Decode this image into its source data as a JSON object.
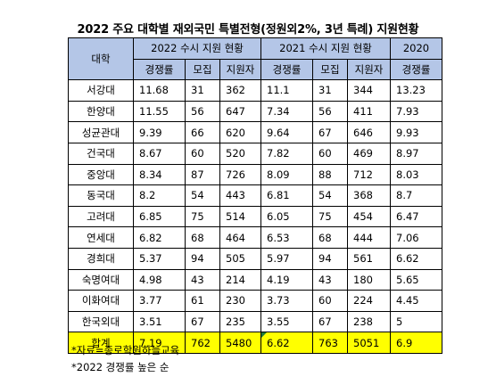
{
  "title": "2022 주요 대학별 재외국민 특별전형(정원외2%, 3년 특례) 지원현황",
  "header": {
    "school_col": "대학",
    "groups": [
      "2022 수시 지원 현황",
      "2021 수시 지원 현황",
      "2020"
    ],
    "subcols": [
      "경쟁률",
      "모집",
      "지원자",
      "경쟁률",
      "모집",
      "지원자",
      "경쟁률"
    ]
  },
  "rows": [
    {
      "school": "서강대",
      "cells": [
        "11.68",
        "31",
        "362",
        "11.1",
        "31",
        "344",
        "13.23"
      ]
    },
    {
      "school": "한양대",
      "cells": [
        "11.55",
        "56",
        "647",
        "7.34",
        "56",
        "411",
        "7.93"
      ]
    },
    {
      "school": "성균관대",
      "cells": [
        "9.39",
        "66",
        "620",
        "9.64",
        "67",
        "646",
        "9.93"
      ]
    },
    {
      "school": "건국대",
      "cells": [
        "8.67",
        "60",
        "520",
        "7.82",
        "60",
        "469",
        "8.97"
      ]
    },
    {
      "school": "중앙대",
      "cells": [
        "8.34",
        "87",
        "726",
        "8.09",
        "88",
        "712",
        "8.03"
      ]
    },
    {
      "school": "동국대",
      "cells": [
        "8.2",
        "54",
        "443",
        "6.81",
        "54",
        "368",
        "8.7"
      ]
    },
    {
      "school": "고려대",
      "cells": [
        "6.85",
        "75",
        "514",
        "6.05",
        "75",
        "454",
        "6.47"
      ]
    },
    {
      "school": "연세대",
      "cells": [
        "6.82",
        "68",
        "464",
        "6.53",
        "68",
        "444",
        "7.06"
      ]
    },
    {
      "school": "경희대",
      "cells": [
        "5.37",
        "94",
        "505",
        "5.97",
        "94",
        "561",
        "6.62"
      ]
    },
    {
      "school": "숙명여대",
      "cells": [
        "4.98",
        "43",
        "214",
        "4.19",
        "43",
        "180",
        "5.65"
      ]
    },
    {
      "school": "이화여대",
      "cells": [
        "3.77",
        "61",
        "230",
        "3.73",
        "60",
        "224",
        "4.45"
      ]
    },
    {
      "school": "한국외대",
      "cells": [
        "3.51",
        "67",
        "235",
        "3.55",
        "67",
        "238",
        "5"
      ]
    }
  ],
  "total": {
    "school": "합계",
    "cells": [
      "7.19",
      "762",
      "5480",
      "6.62",
      "763",
      "5051",
      "6.9"
    ]
  },
  "notes": [
    "*자료=종로학원하늘교육",
    "*2022 경쟁률 높은 순"
  ],
  "colors": {
    "header_bg": "#b4c6e7",
    "total_bg": "#ffff00",
    "marker": "#1f7a3a"
  }
}
